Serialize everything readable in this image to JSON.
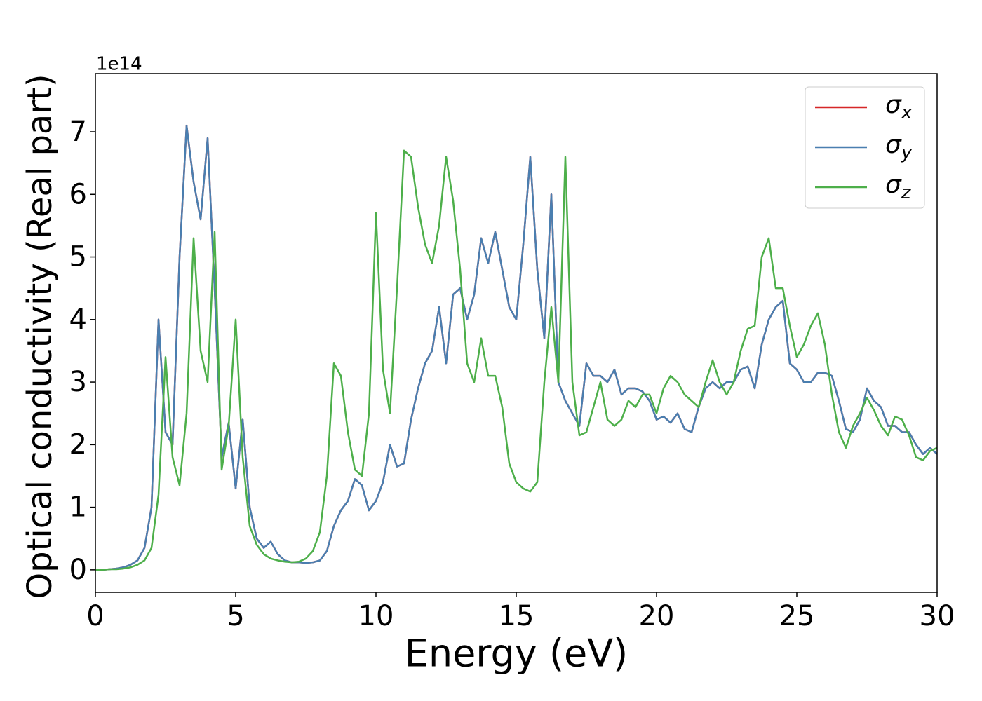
{
  "chart_data": {
    "type": "line",
    "x_label": "Energy (eV)",
    "y_label": "Optical conductivity (Real part)",
    "y_offset_label": "1e14",
    "xlim": [
      0,
      30
    ],
    "xticks": [
      0,
      5,
      10,
      15,
      20,
      25,
      30
    ],
    "ylim": [
      -0.36,
      7.93
    ],
    "yticks": [
      0,
      1,
      2,
      3,
      4,
      5,
      6,
      7
    ],
    "legend": "upper right",
    "x": [
      0,
      0.25,
      0.5,
      0.75,
      1,
      1.25,
      1.5,
      1.75,
      2,
      2.25,
      2.5,
      2.75,
      3,
      3.25,
      3.5,
      3.75,
      4,
      4.25,
      4.5,
      4.75,
      5,
      5.25,
      5.5,
      5.75,
      6,
      6.25,
      6.5,
      6.75,
      7,
      7.25,
      7.5,
      7.75,
      8,
      8.25,
      8.5,
      8.75,
      9,
      9.25,
      9.5,
      9.75,
      10,
      10.25,
      10.5,
      10.75,
      11,
      11.25,
      11.5,
      11.75,
      12,
      12.25,
      12.5,
      12.75,
      13,
      13.25,
      13.5,
      13.75,
      14,
      14.25,
      14.5,
      14.75,
      15,
      15.25,
      15.5,
      15.75,
      16,
      16.25,
      16.5,
      16.75,
      17,
      17.25,
      17.5,
      17.75,
      18,
      18.25,
      18.5,
      18.75,
      19,
      19.25,
      19.5,
      19.75,
      20,
      20.25,
      20.5,
      20.75,
      21,
      21.25,
      21.5,
      21.75,
      22,
      22.25,
      22.5,
      22.75,
      23,
      23.25,
      23.5,
      23.75,
      24,
      24.25,
      24.5,
      24.75,
      25,
      25.25,
      25.5,
      25.75,
      26,
      26.25,
      26.5,
      26.75,
      27,
      27.25,
      27.5,
      27.75,
      28,
      28.25,
      28.5,
      28.75,
      29,
      29.25,
      29.5,
      29.75,
      30
    ],
    "series": [
      {
        "name": "σx",
        "color": "#d62728",
        "values": [
          0,
          0,
          0.01,
          0.02,
          0.04,
          0.08,
          0.15,
          0.35,
          1.0,
          4.0,
          2.2,
          2.0,
          5.0,
          7.1,
          6.2,
          5.6,
          6.9,
          4.5,
          1.8,
          2.35,
          1.3,
          2.4,
          1.0,
          0.5,
          0.35,
          0.45,
          0.25,
          0.15,
          0.12,
          0.12,
          0.11,
          0.12,
          0.15,
          0.3,
          0.7,
          0.95,
          1.1,
          1.45,
          1.35,
          0.95,
          1.1,
          1.4,
          2.0,
          1.65,
          1.7,
          2.4,
          2.9,
          3.3,
          3.5,
          4.2,
          3.3,
          4.4,
          4.5,
          4.0,
          4.4,
          5.3,
          4.9,
          5.4,
          4.8,
          4.2,
          4.0,
          5.2,
          6.6,
          4.8,
          3.7,
          6.0,
          3.0,
          2.7,
          2.5,
          2.3,
          3.3,
          3.1,
          3.1,
          3.0,
          3.2,
          2.8,
          2.9,
          2.9,
          2.85,
          2.7,
          2.4,
          2.45,
          2.35,
          2.5,
          2.25,
          2.2,
          2.6,
          2.9,
          3.0,
          2.9,
          3.0,
          3.0,
          3.2,
          3.25,
          2.9,
          3.6,
          4.0,
          4.2,
          4.3,
          3.3,
          3.2,
          3.0,
          3.0,
          3.15,
          3.15,
          3.1,
          2.7,
          2.25,
          2.2,
          2.4,
          2.9,
          2.7,
          2.6,
          2.3,
          2.3,
          2.2,
          2.2,
          2.0,
          1.85,
          1.95,
          1.85
        ]
      },
      {
        "name": "σy",
        "color": "#4a7fb0",
        "values": [
          0,
          0,
          0.01,
          0.02,
          0.04,
          0.08,
          0.15,
          0.35,
          1.0,
          4.0,
          2.2,
          2.0,
          5.0,
          7.1,
          6.2,
          5.6,
          6.9,
          4.5,
          1.8,
          2.35,
          1.3,
          2.4,
          1.0,
          0.5,
          0.35,
          0.45,
          0.25,
          0.15,
          0.12,
          0.12,
          0.11,
          0.12,
          0.15,
          0.3,
          0.7,
          0.95,
          1.1,
          1.45,
          1.35,
          0.95,
          1.1,
          1.4,
          2.0,
          1.65,
          1.7,
          2.4,
          2.9,
          3.3,
          3.5,
          4.2,
          3.3,
          4.4,
          4.5,
          4.0,
          4.4,
          5.3,
          4.9,
          5.4,
          4.8,
          4.2,
          4.0,
          5.2,
          6.6,
          4.8,
          3.7,
          6.0,
          3.0,
          2.7,
          2.5,
          2.3,
          3.3,
          3.1,
          3.1,
          3.0,
          3.2,
          2.8,
          2.9,
          2.9,
          2.85,
          2.7,
          2.4,
          2.45,
          2.35,
          2.5,
          2.25,
          2.2,
          2.6,
          2.9,
          3.0,
          2.9,
          3.0,
          3.0,
          3.2,
          3.25,
          2.9,
          3.6,
          4.0,
          4.2,
          4.3,
          3.3,
          3.2,
          3.0,
          3.0,
          3.15,
          3.15,
          3.1,
          2.7,
          2.25,
          2.2,
          2.4,
          2.9,
          2.7,
          2.6,
          2.3,
          2.3,
          2.2,
          2.2,
          2.0,
          1.85,
          1.95,
          1.85
        ]
      },
      {
        "name": "σz",
        "color": "#4daf4a",
        "values": [
          0,
          0,
          0.01,
          0.01,
          0.02,
          0.04,
          0.08,
          0.15,
          0.35,
          1.2,
          3.4,
          1.8,
          1.35,
          2.5,
          5.3,
          3.5,
          3.0,
          5.4,
          1.6,
          2.3,
          4.0,
          1.8,
          0.7,
          0.4,
          0.25,
          0.18,
          0.15,
          0.13,
          0.12,
          0.13,
          0.18,
          0.3,
          0.6,
          1.5,
          3.3,
          3.1,
          2.2,
          1.6,
          1.5,
          2.5,
          5.7,
          3.2,
          2.5,
          4.5,
          6.7,
          6.6,
          5.8,
          5.2,
          4.9,
          5.5,
          6.6,
          5.9,
          4.8,
          3.3,
          3.0,
          3.7,
          3.1,
          3.1,
          2.6,
          1.7,
          1.4,
          1.3,
          1.25,
          1.4,
          3.0,
          4.2,
          3.0,
          6.6,
          3.0,
          2.15,
          2.2,
          2.6,
          3.0,
          2.4,
          2.3,
          2.4,
          2.7,
          2.6,
          2.8,
          2.8,
          2.5,
          2.9,
          3.1,
          3.0,
          2.8,
          2.7,
          2.6,
          3.0,
          3.35,
          3.0,
          2.8,
          3.0,
          3.5,
          3.85,
          3.9,
          5.0,
          5.3,
          4.5,
          4.5,
          3.9,
          3.4,
          3.6,
          3.9,
          4.1,
          3.6,
          2.8,
          2.2,
          1.95,
          2.3,
          2.5,
          2.75,
          2.55,
          2.3,
          2.15,
          2.45,
          2.4,
          2.15,
          1.8,
          1.75,
          1.9,
          1.95
        ]
      }
    ]
  }
}
